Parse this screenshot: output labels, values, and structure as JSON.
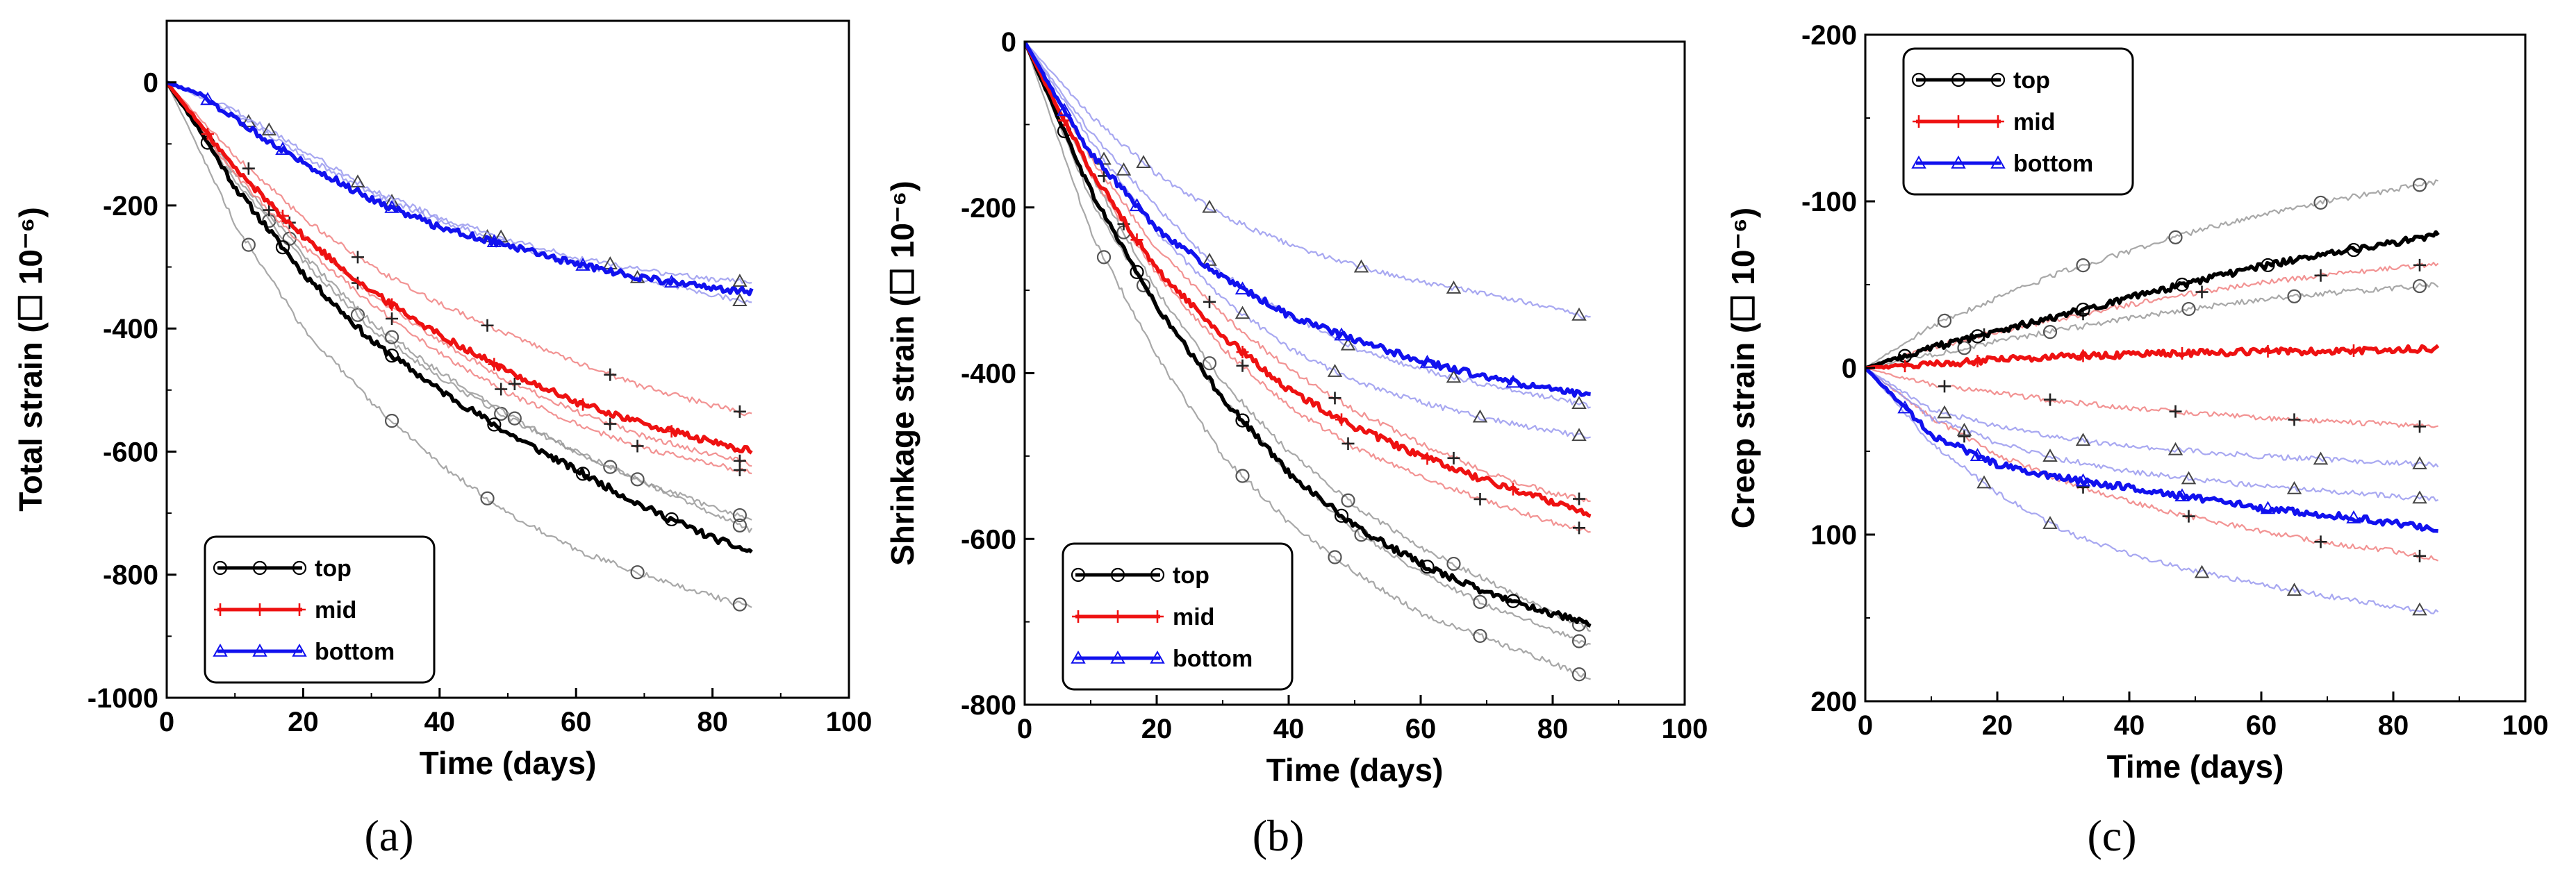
{
  "chart_data": [
    {
      "type": "line",
      "panel_label": "(a)",
      "xlabel": "Time (days)",
      "ylabel": "Total strain (☐ 10⁻⁶)",
      "xlim": [
        0,
        100
      ],
      "ylim": [
        -1000,
        100
      ],
      "y_inverted": false,
      "xticks": [
        0,
        20,
        40,
        60,
        80,
        100
      ],
      "yticks": [
        -1000,
        -800,
        -600,
        -400,
        -200,
        0
      ],
      "legend_position": "bottom-left",
      "colors": {
        "top": "#000000",
        "mid": "#ee1111",
        "bottom": "#1111ee"
      },
      "series": [
        {
          "name": "top",
          "role": "mean",
          "markers": "circle",
          "color": "#000000",
          "x": [
            0,
            5,
            10,
            20,
            30,
            40,
            50,
            60,
            70,
            80,
            86
          ],
          "y": [
            0,
            -80,
            -170,
            -310,
            -420,
            -500,
            -570,
            -630,
            -690,
            -740,
            -765
          ]
        },
        {
          "name": "mid",
          "role": "mean",
          "markers": "plus",
          "color": "#ee1111",
          "x": [
            0,
            5,
            10,
            20,
            30,
            40,
            50,
            60,
            70,
            80,
            86
          ],
          "y": [
            0,
            -70,
            -140,
            -250,
            -340,
            -410,
            -470,
            -520,
            -555,
            -585,
            -600
          ]
        },
        {
          "name": "bottom",
          "role": "mean",
          "markers": "triangle",
          "color": "#1111ee",
          "x": [
            0,
            5,
            10,
            20,
            30,
            40,
            50,
            60,
            70,
            80,
            86
          ],
          "y": [
            0,
            -20,
            -60,
            -130,
            -190,
            -235,
            -265,
            -295,
            -318,
            -335,
            -340
          ]
        },
        {
          "group": "top",
          "role": "sensor",
          "color": "#999999",
          "x": [
            0,
            10,
            20,
            30,
            40,
            50,
            60,
            70,
            80,
            86
          ],
          "y": [
            0,
            -230,
            -400,
            -520,
            -620,
            -700,
            -760,
            -800,
            -835,
            -855
          ]
        },
        {
          "group": "top",
          "role": "sensor",
          "color": "#999999",
          "x": [
            0,
            10,
            20,
            30,
            40,
            50,
            60,
            70,
            80,
            86
          ],
          "y": [
            0,
            -160,
            -290,
            -400,
            -480,
            -545,
            -600,
            -650,
            -690,
            -710
          ]
        },
        {
          "group": "top",
          "role": "sensor",
          "color": "#999999",
          "x": [
            0,
            10,
            20,
            30,
            40,
            50,
            60,
            70,
            80,
            86
          ],
          "y": [
            0,
            -150,
            -280,
            -390,
            -470,
            -540,
            -600,
            -650,
            -700,
            -730
          ]
        },
        {
          "group": "mid",
          "role": "sensor",
          "color": "#f08080",
          "x": [
            0,
            10,
            20,
            30,
            40,
            50,
            60,
            70,
            80,
            86
          ],
          "y": [
            0,
            -120,
            -220,
            -300,
            -360,
            -410,
            -455,
            -495,
            -525,
            -540
          ]
        },
        {
          "group": "mid",
          "role": "sensor",
          "color": "#f08080",
          "x": [
            0,
            10,
            20,
            30,
            40,
            50,
            60,
            70,
            80,
            86
          ],
          "y": [
            0,
            -150,
            -265,
            -360,
            -440,
            -505,
            -555,
            -595,
            -620,
            -635
          ]
        },
        {
          "group": "mid",
          "role": "sensor",
          "color": "#f08080",
          "x": [
            0,
            10,
            20,
            30,
            40,
            50,
            60,
            70,
            80,
            86
          ],
          "y": [
            0,
            -140,
            -250,
            -345,
            -420,
            -485,
            -535,
            -575,
            -605,
            -620
          ]
        },
        {
          "group": "bottom",
          "role": "sensor",
          "color": "#9999ee",
          "x": [
            0,
            10,
            20,
            30,
            40,
            50,
            60,
            70,
            80,
            86
          ],
          "y": [
            0,
            -50,
            -120,
            -180,
            -225,
            -262,
            -295,
            -320,
            -345,
            -360
          ]
        },
        {
          "group": "bottom",
          "role": "sensor",
          "color": "#9999ee",
          "x": [
            0,
            10,
            20,
            30,
            40,
            50,
            60,
            70,
            80,
            86
          ],
          "y": [
            0,
            -45,
            -110,
            -175,
            -220,
            -255,
            -285,
            -305,
            -320,
            -325
          ]
        }
      ]
    },
    {
      "type": "line",
      "panel_label": "(b)",
      "xlabel": "Time (days)",
      "ylabel": "Shrinkage strain (☐ 10⁻⁶)",
      "xlim": [
        0,
        100
      ],
      "ylim": [
        -800,
        0
      ],
      "y_inverted": false,
      "xticks": [
        0,
        20,
        40,
        60,
        80,
        100
      ],
      "yticks": [
        -800,
        -600,
        -400,
        -200,
        0
      ],
      "legend_position": "bottom-left",
      "colors": {
        "top": "#000000",
        "mid": "#ee1111",
        "bottom": "#1111ee"
      },
      "series": [
        {
          "name": "top",
          "role": "mean",
          "markers": "circle",
          "color": "#000000",
          "x": [
            0,
            5,
            10,
            20,
            30,
            40,
            50,
            60,
            70,
            80,
            86
          ],
          "y": [
            0,
            -90,
            -180,
            -320,
            -430,
            -520,
            -585,
            -630,
            -665,
            -690,
            -705
          ]
        },
        {
          "name": "mid",
          "role": "mean",
          "markers": "plus",
          "color": "#ee1111",
          "x": [
            0,
            5,
            10,
            20,
            30,
            40,
            50,
            60,
            70,
            80,
            86
          ],
          "y": [
            0,
            -80,
            -155,
            -275,
            -355,
            -420,
            -465,
            -500,
            -530,
            -555,
            -570
          ]
        },
        {
          "name": "bottom",
          "role": "mean",
          "markers": "triangle",
          "color": "#1111ee",
          "x": [
            0,
            5,
            10,
            20,
            30,
            40,
            50,
            60,
            70,
            80,
            86
          ],
          "y": [
            0,
            -70,
            -135,
            -225,
            -285,
            -330,
            -360,
            -385,
            -405,
            -420,
            -428
          ]
        },
        {
          "group": "top",
          "role": "sensor",
          "color": "#999999",
          "x": [
            0,
            10,
            20,
            30,
            40,
            50,
            60,
            70,
            80,
            86
          ],
          "y": [
            0,
            -230,
            -380,
            -500,
            -580,
            -640,
            -690,
            -720,
            -750,
            -770
          ]
        },
        {
          "group": "top",
          "role": "sensor",
          "color": "#999999",
          "x": [
            0,
            10,
            20,
            30,
            40,
            50,
            60,
            70,
            80,
            86
          ],
          "y": [
            0,
            -160,
            -300,
            -410,
            -495,
            -560,
            -610,
            -650,
            -690,
            -710
          ]
        },
        {
          "group": "top",
          "role": "sensor",
          "color": "#999999",
          "x": [
            0,
            10,
            20,
            30,
            40,
            50,
            60,
            70,
            80,
            86
          ],
          "y": [
            0,
            -190,
            -320,
            -430,
            -520,
            -590,
            -640,
            -680,
            -710,
            -730
          ]
        },
        {
          "group": "mid",
          "role": "sensor",
          "color": "#f08080",
          "x": [
            0,
            10,
            20,
            30,
            40,
            50,
            60,
            70,
            80,
            86
          ],
          "y": [
            0,
            -140,
            -250,
            -330,
            -395,
            -445,
            -485,
            -520,
            -545,
            -555
          ]
        },
        {
          "group": "mid",
          "role": "sensor",
          "color": "#f08080",
          "x": [
            0,
            10,
            20,
            30,
            40,
            50,
            60,
            70,
            80,
            86
          ],
          "y": [
            0,
            -160,
            -280,
            -370,
            -440,
            -490,
            -525,
            -555,
            -580,
            -590
          ]
        },
        {
          "group": "bottom",
          "role": "sensor",
          "color": "#9999ee",
          "x": [
            0,
            10,
            20,
            30,
            40,
            50,
            60,
            70,
            80,
            86
          ],
          "y": [
            0,
            -90,
            -160,
            -210,
            -245,
            -270,
            -290,
            -305,
            -320,
            -335
          ]
        },
        {
          "group": "bottom",
          "role": "sensor",
          "color": "#9999ee",
          "x": [
            0,
            10,
            20,
            30,
            40,
            50,
            60,
            70,
            80,
            86
          ],
          "y": [
            0,
            -120,
            -230,
            -310,
            -370,
            -410,
            -435,
            -455,
            -470,
            -478
          ]
        },
        {
          "group": "bottom",
          "role": "sensor",
          "color": "#9999ee",
          "x": [
            0,
            10,
            20,
            30,
            40,
            50,
            60,
            70,
            80,
            86
          ],
          "y": [
            0,
            -110,
            -200,
            -280,
            -330,
            -370,
            -395,
            -415,
            -430,
            -440
          ]
        }
      ]
    },
    {
      "type": "line",
      "panel_label": "(c)",
      "xlabel": "Time (days)",
      "ylabel": "Creep strain (☐ 10⁻⁶)",
      "xlim": [
        0,
        100
      ],
      "ylim": [
        -200,
        200
      ],
      "y_inverted": true,
      "xticks": [
        0,
        20,
        40,
        60,
        80,
        100
      ],
      "yticks": [
        -200,
        -100,
        0,
        100,
        200
      ],
      "legend_position": "top-left",
      "colors": {
        "top": "#000000",
        "mid": "#ee1111",
        "bottom": "#1111ee"
      },
      "series": [
        {
          "name": "top",
          "role": "mean",
          "markers": "circle",
          "color": "#000000",
          "x": [
            0,
            10,
            20,
            30,
            40,
            50,
            60,
            70,
            80,
            87
          ],
          "y": [
            0,
            -12,
            -22,
            -32,
            -42,
            -52,
            -61,
            -68,
            -75,
            -80
          ]
        },
        {
          "name": "mid",
          "role": "mean",
          "markers": "plus",
          "color": "#ee1111",
          "x": [
            0,
            10,
            20,
            30,
            40,
            50,
            60,
            70,
            80,
            87
          ],
          "y": [
            0,
            -2,
            -5,
            -7,
            -8,
            -9,
            -10,
            -10,
            -11,
            -12
          ]
        },
        {
          "name": "bottom",
          "role": "mean",
          "markers": "triangle",
          "color": "#1111ee",
          "x": [
            0,
            10,
            20,
            30,
            40,
            50,
            60,
            70,
            80,
            87
          ],
          "y": [
            0,
            40,
            58,
            66,
            72,
            78,
            84,
            88,
            93,
            97
          ]
        },
        {
          "group": "top",
          "role": "sensor",
          "color": "#999999",
          "x": [
            0,
            10,
            20,
            30,
            40,
            50,
            60,
            70,
            80,
            87
          ],
          "y": [
            0,
            -25,
            -42,
            -58,
            -70,
            -82,
            -92,
            -100,
            -107,
            -112
          ]
        },
        {
          "group": "top",
          "role": "sensor",
          "color": "#999999",
          "x": [
            0,
            10,
            20,
            30,
            40,
            50,
            60,
            70,
            80,
            87
          ],
          "y": [
            0,
            -8,
            -16,
            -23,
            -30,
            -36,
            -41,
            -45,
            -48,
            -50
          ]
        },
        {
          "group": "mid",
          "role": "sensor",
          "color": "#f08080",
          "x": [
            0,
            10,
            20,
            30,
            40,
            50,
            60,
            70,
            80,
            87
          ],
          "y": [
            0,
            -12,
            -22,
            -30,
            -38,
            -45,
            -51,
            -56,
            -60,
            -63
          ]
        },
        {
          "group": "mid",
          "role": "sensor",
          "color": "#f08080",
          "x": [
            0,
            10,
            20,
            30,
            40,
            50,
            60,
            70,
            80,
            87
          ],
          "y": [
            0,
            10,
            15,
            20,
            24,
            27,
            30,
            32,
            34,
            36
          ]
        },
        {
          "group": "mid",
          "role": "sensor",
          "color": "#f08080",
          "x": [
            0,
            10,
            20,
            30,
            40,
            50,
            60,
            70,
            80,
            87
          ],
          "y": [
            0,
            30,
            52,
            68,
            80,
            90,
            98,
            105,
            110,
            115
          ]
        },
        {
          "group": "bottom",
          "role": "sensor",
          "color": "#9999ee",
          "x": [
            0,
            10,
            20,
            30,
            40,
            50,
            60,
            70,
            80,
            87
          ],
          "y": [
            0,
            45,
            75,
            98,
            112,
            122,
            130,
            137,
            143,
            147
          ]
        },
        {
          "group": "bottom",
          "role": "sensor",
          "color": "#9999ee",
          "x": [
            0,
            10,
            20,
            30,
            40,
            50,
            60,
            70,
            80,
            87
          ],
          "y": [
            0,
            25,
            35,
            42,
            47,
            50,
            53,
            55,
            57,
            58
          ]
        },
        {
          "group": "bottom",
          "role": "sensor",
          "color": "#9999ee",
          "x": [
            0,
            10,
            20,
            30,
            40,
            50,
            60,
            70,
            80,
            87
          ],
          "y": [
            0,
            30,
            45,
            55,
            62,
            67,
            71,
            74,
            77,
            79
          ]
        }
      ]
    }
  ]
}
